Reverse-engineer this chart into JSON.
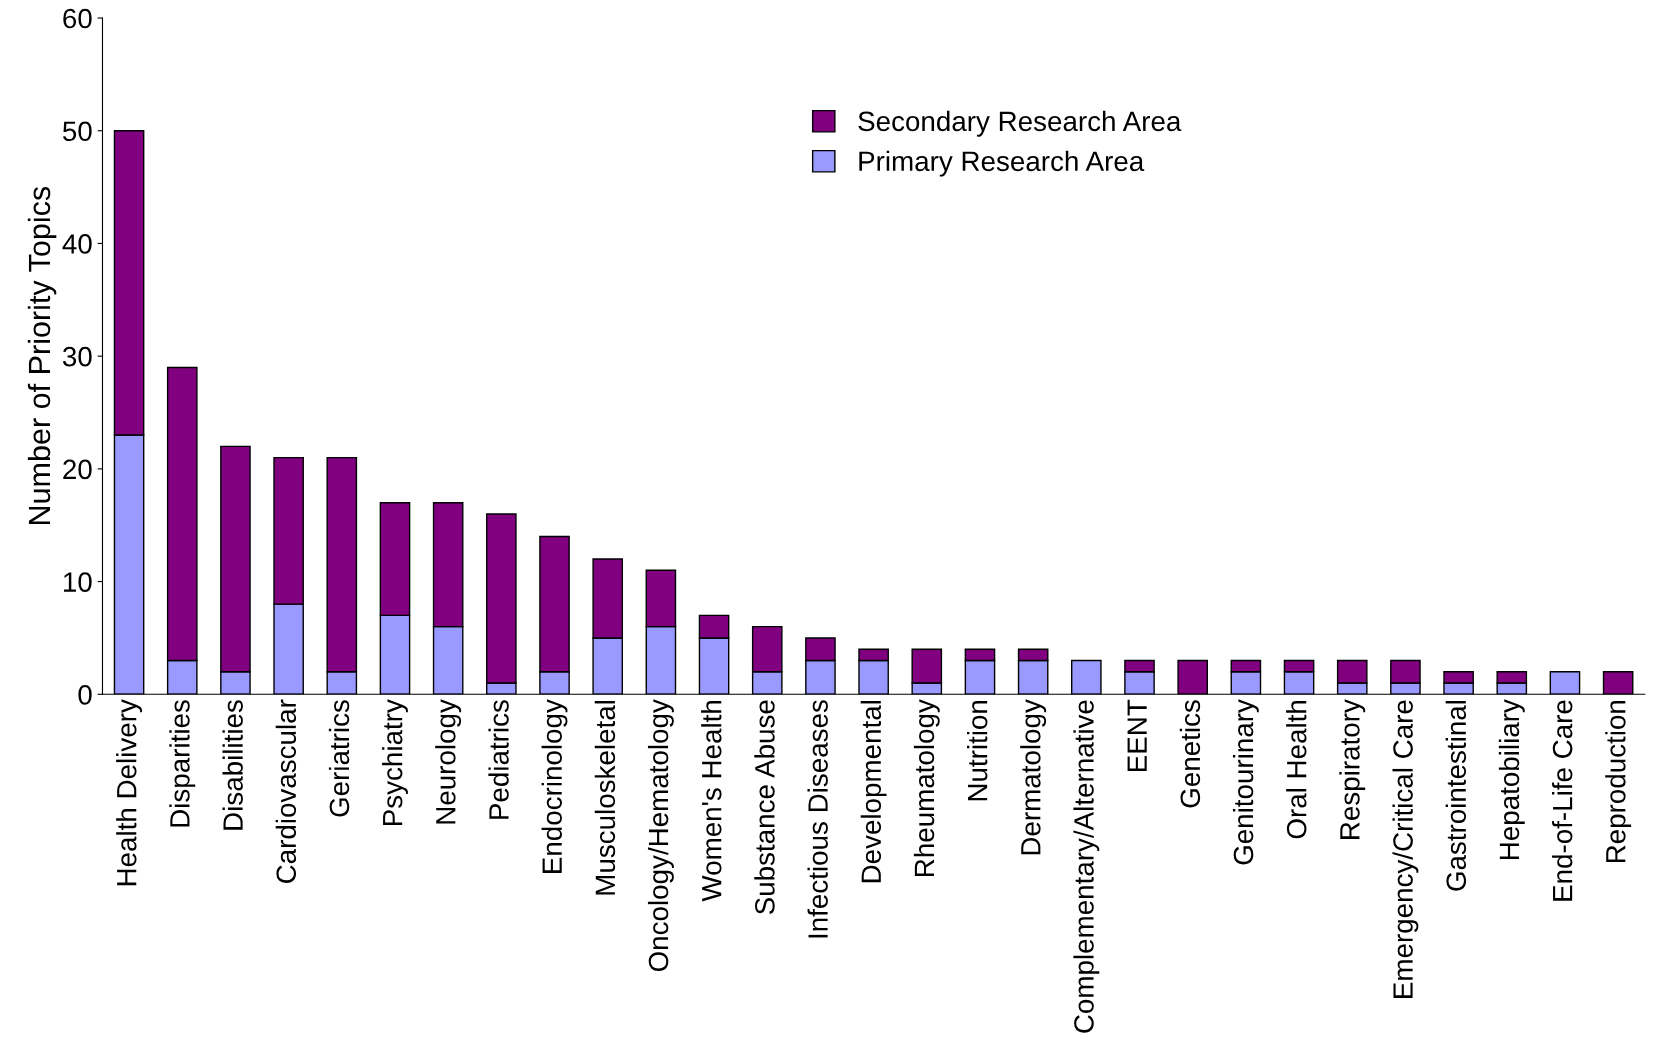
{
  "chart_data": {
    "type": "bar",
    "stacked": true,
    "ylabel": "Number of Priority Topics",
    "categories": [
      "Health Delivery",
      "Disparities",
      "Disabilities",
      "Cardiovascular",
      "Geriatrics",
      "Psychiatry",
      "Neurology",
      "Pediatrics",
      "Endocrinology",
      "Musculoskeletal",
      "Oncology/Hematology",
      "Women's Health",
      "Substance Abuse",
      "Infectious Diseases",
      "Developmental",
      "Rheumatology",
      "Nutrition",
      "Dermatology",
      "Complementary/Alternative",
      "EENT",
      "Genetics",
      "Genitourinary",
      "Oral Health",
      "Respiratory",
      "Emergency/Critical Care",
      "Gastrointestinal",
      "Hepatobiliary",
      "End-of-Life Care",
      "Reproduction"
    ],
    "series": [
      {
        "name": "Primary Research Area",
        "color": "#9999ff",
        "values": [
          23,
          3,
          2,
          8,
          2,
          7,
          6,
          1,
          2,
          5,
          6,
          5,
          2,
          3,
          3,
          1,
          3,
          3,
          3,
          2,
          0,
          2,
          2,
          1,
          1,
          1,
          1,
          2,
          0
        ]
      },
      {
        "name": "Secondary Research Area",
        "color": "#800080",
        "values": [
          27,
          26,
          20,
          13,
          19,
          10,
          11,
          15,
          12,
          7,
          5,
          2,
          4,
          2,
          1,
          3,
          1,
          1,
          0,
          1,
          3,
          1,
          1,
          2,
          2,
          1,
          1,
          0,
          2
        ]
      }
    ],
    "ylim": [
      0,
      60
    ],
    "yticks": [
      0,
      10,
      20,
      30,
      40,
      50,
      60
    ],
    "grid": false,
    "legend": "top"
  }
}
